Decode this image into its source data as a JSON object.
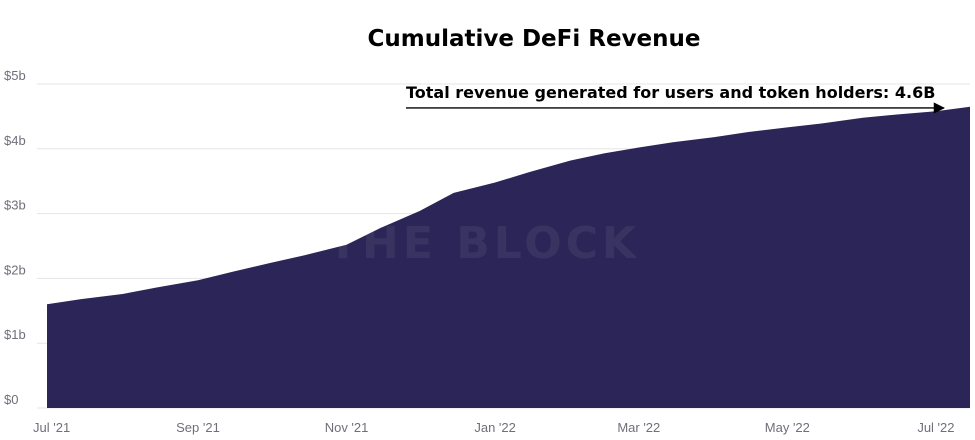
{
  "chart_data": {
    "type": "area",
    "title": "Cumulative DeFi Revenue",
    "xlabel": "",
    "ylabel": "",
    "ylim": [
      0,
      5
    ],
    "y_ticks": [
      {
        "value": 0,
        "label": "$0"
      },
      {
        "value": 1,
        "label": "$1b"
      },
      {
        "value": 2,
        "label": "$2b"
      },
      {
        "value": 3,
        "label": "$3b"
      },
      {
        "value": 4,
        "label": "$4b"
      },
      {
        "value": 5,
        "label": "$5b"
      }
    ],
    "x_ticks": [
      {
        "x": "2021-07-01",
        "label": "Jul '21"
      },
      {
        "x": "2021-09-01",
        "label": "Sep '21"
      },
      {
        "x": "2021-11-01",
        "label": "Nov '21"
      },
      {
        "x": "2022-01-01",
        "label": "Jan '22"
      },
      {
        "x": "2022-03-01",
        "label": "Mar '22"
      },
      {
        "x": "2022-05-01",
        "label": "May '22"
      },
      {
        "x": "2022-07-01",
        "label": "Jul '22"
      }
    ],
    "x_range": [
      "2021-07-01",
      "2022-07-15"
    ],
    "grid": true,
    "legend": "none",
    "color": "#2b2657",
    "series": [
      {
        "x": [
          "2021-07-01",
          "2021-07-15",
          "2021-08-01",
          "2021-08-15",
          "2021-09-01",
          "2021-09-15",
          "2021-10-01",
          "2021-10-15",
          "2021-11-01",
          "2021-11-15",
          "2021-12-01",
          "2021-12-15",
          "2022-01-01",
          "2022-01-15",
          "2022-02-01",
          "2022-02-15",
          "2022-03-01",
          "2022-03-15",
          "2022-04-01",
          "2022-04-15",
          "2022-05-01",
          "2022-05-15",
          "2022-06-01",
          "2022-06-15",
          "2022-07-01",
          "2022-07-15"
        ],
        "y": [
          1.6,
          1.68,
          1.76,
          1.86,
          1.97,
          2.1,
          2.24,
          2.36,
          2.52,
          2.78,
          3.04,
          3.32,
          3.48,
          3.64,
          3.82,
          3.93,
          4.02,
          4.1,
          4.18,
          4.26,
          4.33,
          4.39,
          4.48,
          4.53,
          4.58,
          4.65
        ]
      }
    ],
    "annotation": {
      "text": "Total revenue generated for users and token holders: 4.6B",
      "arrow_to_x": "2022-07-10",
      "arrow_to_y": 4.63
    },
    "watermark": "THE BLOCK"
  }
}
